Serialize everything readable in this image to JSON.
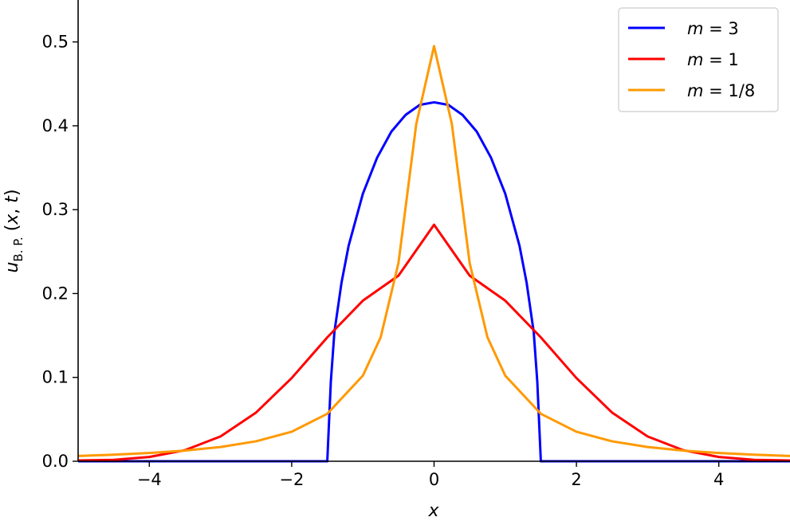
{
  "chart_data": {
    "type": "line",
    "title": "",
    "xlabel": "x",
    "ylabel": "u_{B.P.}(x,t)",
    "xlim": [
      -5,
      5
    ],
    "ylim": [
      0,
      0.55
    ],
    "x_ticks": [
      -4,
      -2,
      0,
      2,
      4
    ],
    "x_tick_labels": [
      "−4",
      "−2",
      "0",
      "2",
      "4"
    ],
    "y_ticks": [
      0.0,
      0.1,
      0.2,
      0.3,
      0.4,
      0.5
    ],
    "y_tick_labels": [
      "0.0",
      "0.1",
      "0.2",
      "0.3",
      "0.4",
      "0.5"
    ],
    "grid": false,
    "legend_position": "top-right",
    "series": [
      {
        "name": "m = 3",
        "color": "#0000ff",
        "x": [
          -5,
          -1.52,
          -1.5,
          -1.45,
          -1.4,
          -1.3,
          -1.2,
          -1.0,
          -0.8,
          -0.6,
          -0.4,
          -0.2,
          0,
          0.2,
          0.4,
          0.6,
          0.8,
          1.0,
          1.2,
          1.3,
          1.4,
          1.45,
          1.5,
          1.52,
          5
        ],
        "y": [
          0,
          0,
          0,
          0.095,
          0.154,
          0.213,
          0.257,
          0.319,
          0.362,
          0.393,
          0.413,
          0.425,
          0.428,
          0.425,
          0.413,
          0.393,
          0.362,
          0.319,
          0.257,
          0.213,
          0.154,
          0.095,
          0,
          0,
          0
        ]
      },
      {
        "name": "m = 1",
        "color": "#ff0000",
        "x": [
          -5,
          -4.5,
          -4,
          -3.5,
          -3,
          -2.5,
          -2,
          -1.5,
          -1,
          -0.5,
          0,
          0.5,
          1,
          1.5,
          2,
          2.5,
          3,
          3.5,
          4,
          4.5,
          5
        ],
        "y": [
          0.001,
          0.0017,
          0.0051,
          0.0132,
          0.0296,
          0.0581,
          0.0992,
          0.1477,
          0.1915,
          0.2213,
          0.282,
          0.2213,
          0.1915,
          0.1477,
          0.0992,
          0.0581,
          0.0296,
          0.0132,
          0.0051,
          0.0017,
          0.001
        ]
      },
      {
        "name": "m = 1/8",
        "color": "#ff9900",
        "x": [
          -5,
          -4.5,
          -4,
          -3.5,
          -3,
          -2.5,
          -2,
          -1.5,
          -1,
          -0.75,
          -0.5,
          -0.25,
          0,
          0.25,
          0.5,
          0.75,
          1,
          1.5,
          2,
          2.5,
          3,
          3.5,
          4,
          4.5,
          5
        ],
        "y": [
          0.0063,
          0.0078,
          0.0098,
          0.0127,
          0.017,
          0.0238,
          0.0352,
          0.0566,
          0.1021,
          0.1478,
          0.2364,
          0.4021,
          0.495,
          0.4021,
          0.2364,
          0.1478,
          0.1021,
          0.0566,
          0.0352,
          0.0238,
          0.017,
          0.0127,
          0.0098,
          0.0078,
          0.0063
        ]
      }
    ]
  }
}
